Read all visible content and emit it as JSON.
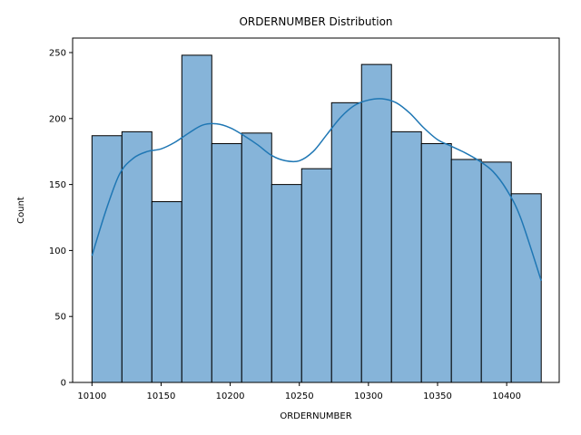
{
  "chart_data": {
    "type": "bar",
    "subtype": "histogram-with-kde",
    "title": "ORDERNUMBER Distribution",
    "xlabel": "ORDERNUMBER",
    "ylabel": "Count",
    "xlim": [
      10086,
      10438
    ],
    "ylim": [
      0,
      261
    ],
    "x_ticks": [
      10100,
      10150,
      10200,
      10250,
      10300,
      10350,
      10400
    ],
    "y_ticks": [
      0,
      50,
      100,
      150,
      200,
      250
    ],
    "bin_edges": [
      10100,
      10121.67,
      10143.33,
      10165,
      10186.67,
      10208.33,
      10230,
      10251.67,
      10273.33,
      10295,
      10316.67,
      10338.33,
      10360,
      10381.67,
      10403.33,
      10425
    ],
    "values": [
      187,
      190,
      137,
      248,
      181,
      189,
      150,
      162,
      212,
      241,
      190,
      181,
      169,
      167,
      143
    ],
    "kde": {
      "x": [
        10100,
        10110,
        10120,
        10130,
        10140,
        10150,
        10160,
        10170,
        10180,
        10190,
        10200,
        10210,
        10220,
        10230,
        10240,
        10250,
        10260,
        10270,
        10280,
        10290,
        10300,
        10310,
        10320,
        10330,
        10340,
        10350,
        10360,
        10370,
        10380,
        10390,
        10400,
        10410,
        10425
      ],
      "y": [
        96,
        130,
        158,
        170,
        175,
        177,
        182,
        189,
        195,
        196,
        193,
        187,
        180,
        172,
        168,
        168,
        175,
        188,
        201,
        210,
        214,
        215,
        212,
        204,
        193,
        184,
        179,
        174,
        168,
        160,
        146,
        125,
        77
      ]
    },
    "bar_color": "#86b4d9",
    "bar_edge_color": "#000000",
    "line_color": "#1f77b4",
    "grid": false,
    "legend": "none"
  }
}
